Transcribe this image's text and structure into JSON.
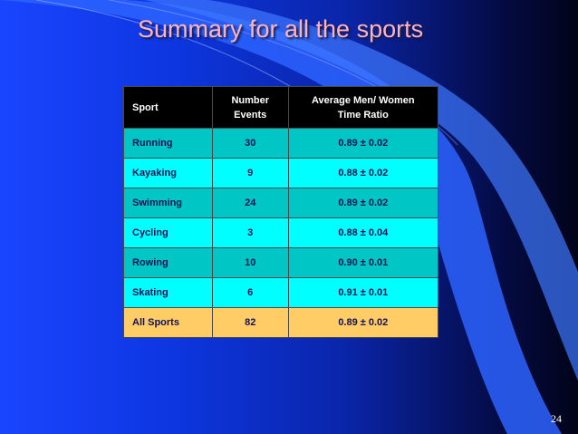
{
  "slide": {
    "title": "Summary for all the sports",
    "page_number": "24"
  },
  "table": {
    "headers": {
      "sport": "Sport",
      "events_line1": "Number",
      "events_line2": "Events",
      "ratio_line1": "Average Men/ Women",
      "ratio_line2": "Time Ratio"
    },
    "rows": [
      {
        "sport": "Running",
        "events": "30",
        "ratio": "0.89  ±  0.02"
      },
      {
        "sport": "Kayaking",
        "events": "9",
        "ratio": "0.88  ±  0.02"
      },
      {
        "sport": "Swimming",
        "events": "24",
        "ratio": "0.89  ±  0.02"
      },
      {
        "sport": "Cycling",
        "events": "3",
        "ratio": "0.88  ±  0.04"
      },
      {
        "sport": "Rowing",
        "events": "10",
        "ratio": "0.90  ±  0.01"
      },
      {
        "sport": "Skating",
        "events": "6",
        "ratio": "0.91  ±  0.01"
      },
      {
        "sport": "All Sports",
        "events": "82",
        "ratio": "0.89  ±  0.02"
      }
    ]
  },
  "colors": {
    "title": "#ffb3bd",
    "header_bg": "#000000",
    "row_dark": "#00c6c6",
    "row_light": "#00ffff",
    "total_row": "#ffcc66"
  }
}
